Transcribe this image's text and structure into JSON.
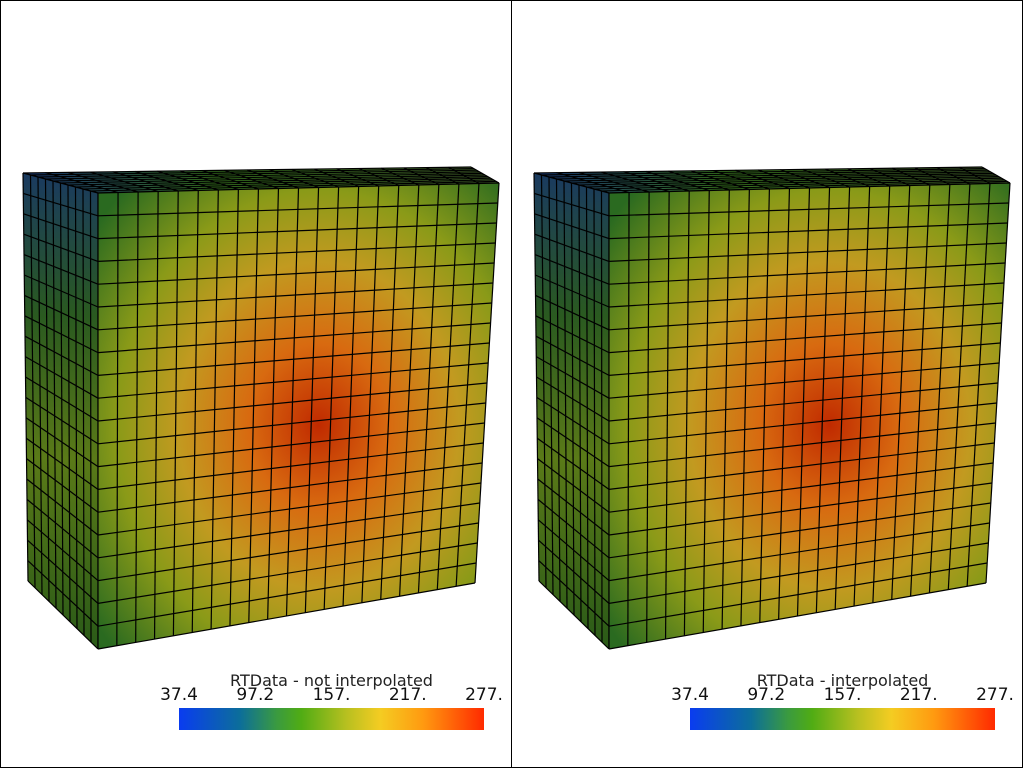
{
  "panels": [
    {
      "scalar_bar": {
        "title": "RTData - not interpolated",
        "ticks": [
          "37.4",
          "97.2",
          "157.",
          "217.",
          "277."
        ]
      },
      "interpolated": false
    },
    {
      "scalar_bar": {
        "title": "RTData - interpolated",
        "ticks": [
          "37.4",
          "97.2",
          "157.",
          "217.",
          "277."
        ]
      },
      "interpolated": true
    }
  ],
  "colormap": [
    "#0a3cf0",
    "#0c6e9a",
    "#50ac14",
    "#f4cc22",
    "#ff9a10",
    "#ff2a00"
  ],
  "scalar_range": [
    37.4,
    277
  ]
}
